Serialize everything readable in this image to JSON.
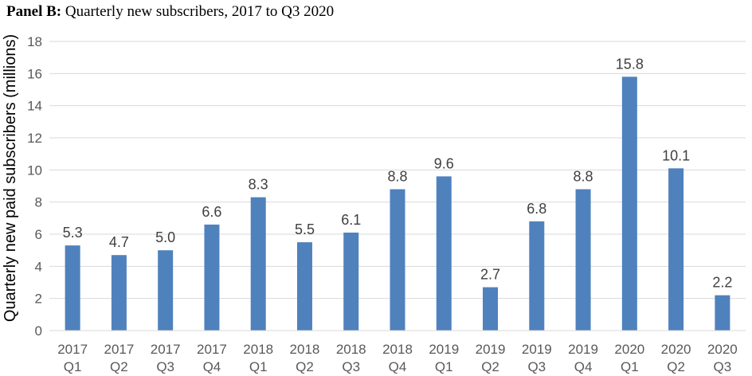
{
  "header": {
    "panel_label": "Panel B:",
    "title_text": "Quarterly new subscribers, 2017 to Q3 2020"
  },
  "chart_data": {
    "type": "bar",
    "title": "Quarterly new subscribers, 2017 to Q3 2020",
    "xlabel": "",
    "ylabel": "Quarterly new paid subscribers (millions)",
    "ylim": [
      0,
      18
    ],
    "yticks": [
      0,
      2,
      4,
      6,
      8,
      10,
      12,
      14,
      16,
      18
    ],
    "grid": true,
    "bar_color": "#4F81BD",
    "categories": [
      [
        "2017",
        "Q1"
      ],
      [
        "2017",
        "Q2"
      ],
      [
        "2017",
        "Q3"
      ],
      [
        "2017",
        "Q4"
      ],
      [
        "2018",
        "Q1"
      ],
      [
        "2018",
        "Q2"
      ],
      [
        "2018",
        "Q3"
      ],
      [
        "2018",
        "Q4"
      ],
      [
        "2019",
        "Q1"
      ],
      [
        "2019",
        "Q2"
      ],
      [
        "2019",
        "Q3"
      ],
      [
        "2019",
        "Q4"
      ],
      [
        "2020",
        "Q1"
      ],
      [
        "2020",
        "Q2"
      ],
      [
        "2020",
        "Q3"
      ]
    ],
    "values": [
      5.3,
      4.7,
      5.0,
      6.6,
      8.3,
      5.5,
      6.1,
      8.8,
      9.6,
      2.7,
      6.8,
      8.8,
      15.8,
      10.1,
      2.2
    ],
    "data_labels": [
      "5.3",
      "4.7",
      "5.0",
      "6.6",
      "8.3",
      "5.5",
      "6.1",
      "8.8",
      "9.6",
      "2.7",
      "6.8",
      "8.8",
      "15.8",
      "10.1",
      "2.2"
    ]
  }
}
